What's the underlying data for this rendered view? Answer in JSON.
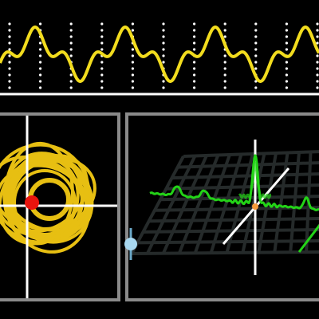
{
  "colors": {
    "background": "#000000",
    "waveform": "#f2dc1e",
    "dot_grid": "#ffffff",
    "baseline": "#ffffff",
    "panel_border": "#8a8a8a",
    "orbit": "#e7bf12",
    "orbit_marker": "#e8140e",
    "crosshair": "#ffffff",
    "spectrum": "#23d317",
    "grid_plane": "#252a2a",
    "slider_knob": "#a8d8f0"
  },
  "panels": {
    "waveform": {
      "kind": "time-domain waveform",
      "periods_shown": 3.5
    },
    "orbit": {
      "kind": "phase orbit",
      "marker": "orbit_marker"
    },
    "spectrum3d": {
      "kind": "3d spectrum with grid plane"
    }
  },
  "controls": {
    "slider_knob": {
      "icon": "circle-knob"
    }
  }
}
